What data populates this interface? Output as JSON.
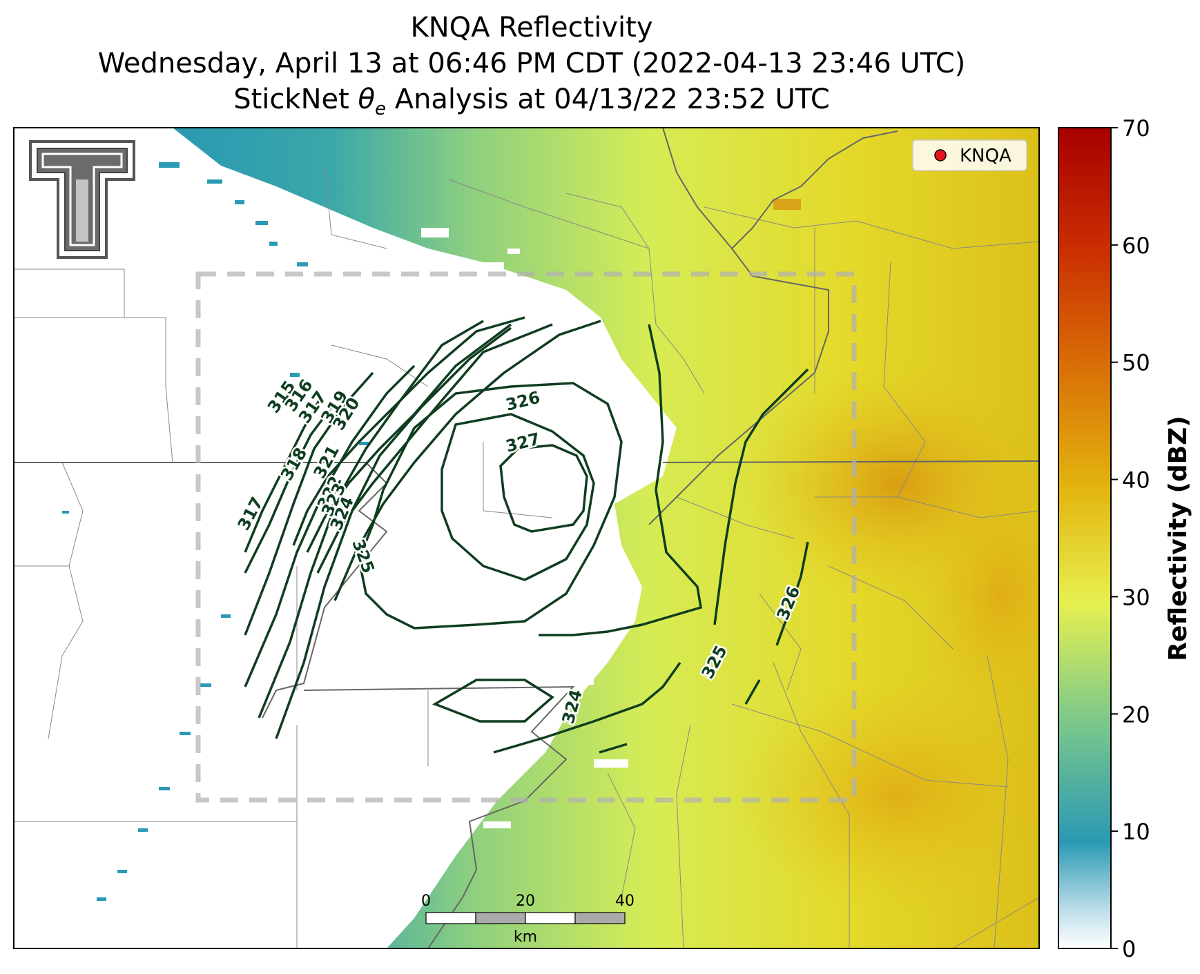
{
  "title": {
    "line1": "KNQA Reflectivity",
    "line2": "Wednesday, April 13 at 06:46 PM CDT (2022-04-13 23:46 UTC)",
    "line3_pre": "StickNet ",
    "line3_sym": "θ",
    "line3_sub": "e",
    "line3_post": " Analysis at 04/13/22 23:52 UTC"
  },
  "legend": {
    "label": "KNQA",
    "marker_color": "#e8161b"
  },
  "colorbar": {
    "title": "Reflectivity (dBZ)",
    "ticks": [
      "0",
      "10",
      "20",
      "30",
      "40",
      "50",
      "60",
      "70"
    ],
    "range": [
      0,
      70
    ],
    "colors": [
      "#ffffff",
      "#1f93b0",
      "#7ec98a",
      "#e8ef4a",
      "#e3b10c",
      "#d95d05",
      "#a80000"
    ]
  },
  "scale_bar": {
    "labels": [
      "0",
      "20",
      "40"
    ],
    "unit": "km"
  },
  "contours": {
    "labels": [
      "315",
      "316",
      "317",
      "317",
      "318",
      "319",
      "320",
      "321",
      "322",
      "323",
      "324",
      "325",
      "326",
      "327",
      "324",
      "325",
      "326"
    ],
    "color": "#0f3d1f"
  },
  "logo": {
    "name": "texas-tech-double-t"
  }
}
